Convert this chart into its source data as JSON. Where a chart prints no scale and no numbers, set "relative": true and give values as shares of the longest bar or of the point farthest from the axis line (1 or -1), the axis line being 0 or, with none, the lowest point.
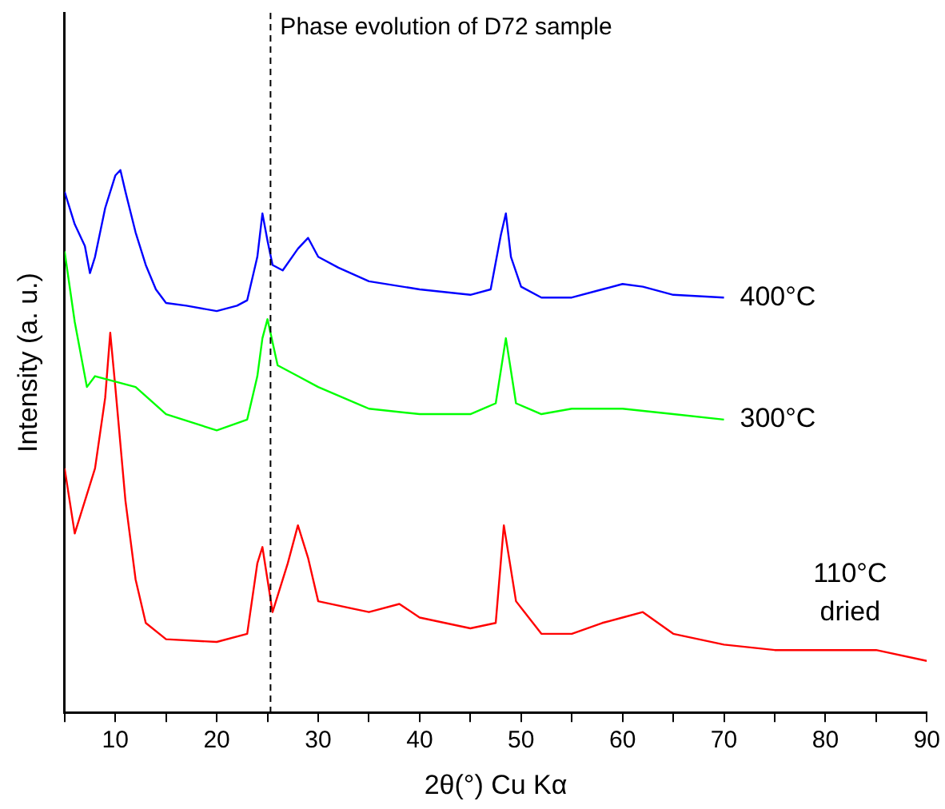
{
  "chart_data": {
    "type": "line",
    "title": "Phase evolution of D72 sample",
    "xlabel": "2θ(°) Cu Kα",
    "ylabel": "Intensity (a. u.)",
    "relative": true,
    "xlim": [
      5,
      90
    ],
    "xticks": [
      {
        "value": 5,
        "label": null
      },
      10,
      {
        "value": 15,
        "label": null
      },
      20,
      {
        "value": 25,
        "label": null
      },
      30,
      {
        "value": 35,
        "label": null
      },
      40,
      {
        "value": 45,
        "label": null
      },
      50,
      {
        "value": 55,
        "label": null
      },
      60,
      {
        "value": 65,
        "label": null
      },
      70,
      {
        "value": 75,
        "label": null
      },
      80,
      {
        "value": 85,
        "label": null
      },
      90
    ],
    "grid": false,
    "legend": false,
    "marker": "none",
    "line_style": "solid",
    "ref_lines": [
      {
        "axis": "x",
        "value": 25.3,
        "line_style": "dashed",
        "color": "#000000"
      }
    ],
    "series": [
      {
        "name": "400°C",
        "color": "#0000ff",
        "x": [
          5,
          6,
          7,
          7.5,
          8,
          9,
          10,
          10.5,
          11,
          12,
          13,
          14,
          15,
          17,
          20,
          22,
          23,
          24,
          24.5,
          25,
          25.5,
          26.5,
          28,
          29,
          30,
          32,
          35,
          40,
          45,
          47,
          48,
          48.5,
          49,
          50,
          52,
          55,
          58,
          60,
          62,
          65,
          70
        ],
        "values": [
          0.96,
          0.9,
          0.86,
          0.81,
          0.84,
          0.93,
          0.99,
          1,
          0.96,
          0.885,
          0.825,
          0.78,
          0.755,
          0.75,
          0.74,
          0.75,
          0.76,
          0.84,
          0.92,
          0.87,
          0.825,
          0.815,
          0.855,
          0.875,
          0.84,
          0.82,
          0.795,
          0.78,
          0.77,
          0.78,
          0.88,
          0.92,
          0.84,
          0.785,
          0.765,
          0.765,
          0.78,
          0.79,
          0.785,
          0.77,
          0.765
        ]
      },
      {
        "name": "300°C",
        "color": "#00ff00",
        "x": [
          5,
          6,
          7.2,
          8,
          10,
          12,
          15,
          20,
          23,
          24,
          24.5,
          25,
          26,
          28,
          30,
          35,
          40,
          45,
          47.5,
          48.5,
          49.5,
          52,
          55,
          60,
          65,
          70
        ],
        "values": [
          0.85,
          0.72,
          0.6,
          0.62,
          0.61,
          0.6,
          0.55,
          0.52,
          0.54,
          0.62,
          0.69,
          0.725,
          0.64,
          0.62,
          0.6,
          0.56,
          0.55,
          0.55,
          0.57,
          0.69,
          0.57,
          0.55,
          0.56,
          0.56,
          0.55,
          0.54
        ]
      },
      {
        "name": "110°C\ndried",
        "color": "#ff0000",
        "x": [
          5,
          6,
          7,
          8,
          9,
          9.5,
          10,
          11,
          12,
          13,
          15,
          20,
          23,
          24,
          24.5,
          25.5,
          27,
          28,
          29,
          30,
          35,
          38,
          40,
          45,
          47.5,
          48.3,
          49.5,
          52,
          55,
          58,
          60,
          62,
          65,
          70,
          75,
          80,
          85,
          90
        ],
        "values": [
          0.45,
          0.33,
          0.39,
          0.45,
          0.58,
          0.7,
          0.6,
          0.39,
          0.245,
          0.165,
          0.135,
          0.13,
          0.145,
          0.275,
          0.305,
          0.185,
          0.275,
          0.345,
          0.285,
          0.205,
          0.185,
          0.2,
          0.175,
          0.155,
          0.165,
          0.345,
          0.205,
          0.145,
          0.145,
          0.165,
          0.175,
          0.185,
          0.145,
          0.125,
          0.115,
          0.115,
          0.115,
          0.095
        ]
      }
    ]
  }
}
